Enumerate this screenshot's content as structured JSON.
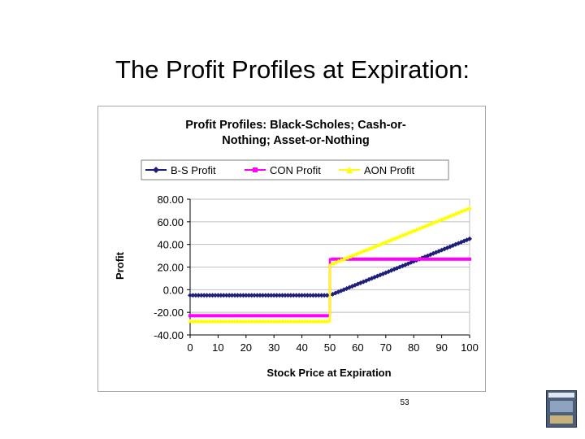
{
  "slide": {
    "title": "The Profit Profiles at Expiration:",
    "page_number": "53"
  },
  "chart_data": {
    "type": "line",
    "title_lines": [
      "Profit Profiles: Black-Scholes; Cash-or-",
      "Nothing; Asset-or-Nothing"
    ],
    "xlabel": "Stock Price at Expiration",
    "ylabel": "Profit",
    "xlim": [
      0,
      100
    ],
    "ylim": [
      -40,
      80
    ],
    "x_ticks": [
      0,
      10,
      20,
      30,
      40,
      50,
      60,
      70,
      80,
      90,
      100
    ],
    "y_ticks": [
      "80.00",
      "60.00",
      "40.00",
      "20.00",
      "0.00",
      "-20.00",
      "-40.00"
    ],
    "y_tick_values": [
      80,
      60,
      40,
      20,
      0,
      -20,
      -40
    ],
    "grid": "horizontal",
    "legend_position": "top",
    "series": [
      {
        "name": "B-S Profit",
        "color": "#1f1f7a",
        "marker": "diamond",
        "x": [
          0,
          50,
          100
        ],
        "y": [
          -5,
          -5,
          45
        ]
      },
      {
        "name": "CON Profit",
        "color": "#ff00ff",
        "marker": "square",
        "x": [
          0,
          50,
          50,
          100
        ],
        "y": [
          -23,
          -23,
          27,
          27
        ]
      },
      {
        "name": "AON Profit",
        "color": "#ffff00",
        "marker": "triangle",
        "x": [
          0,
          50,
          50,
          100
        ],
        "y": [
          -28,
          -28,
          22,
          72
        ]
      }
    ]
  }
}
